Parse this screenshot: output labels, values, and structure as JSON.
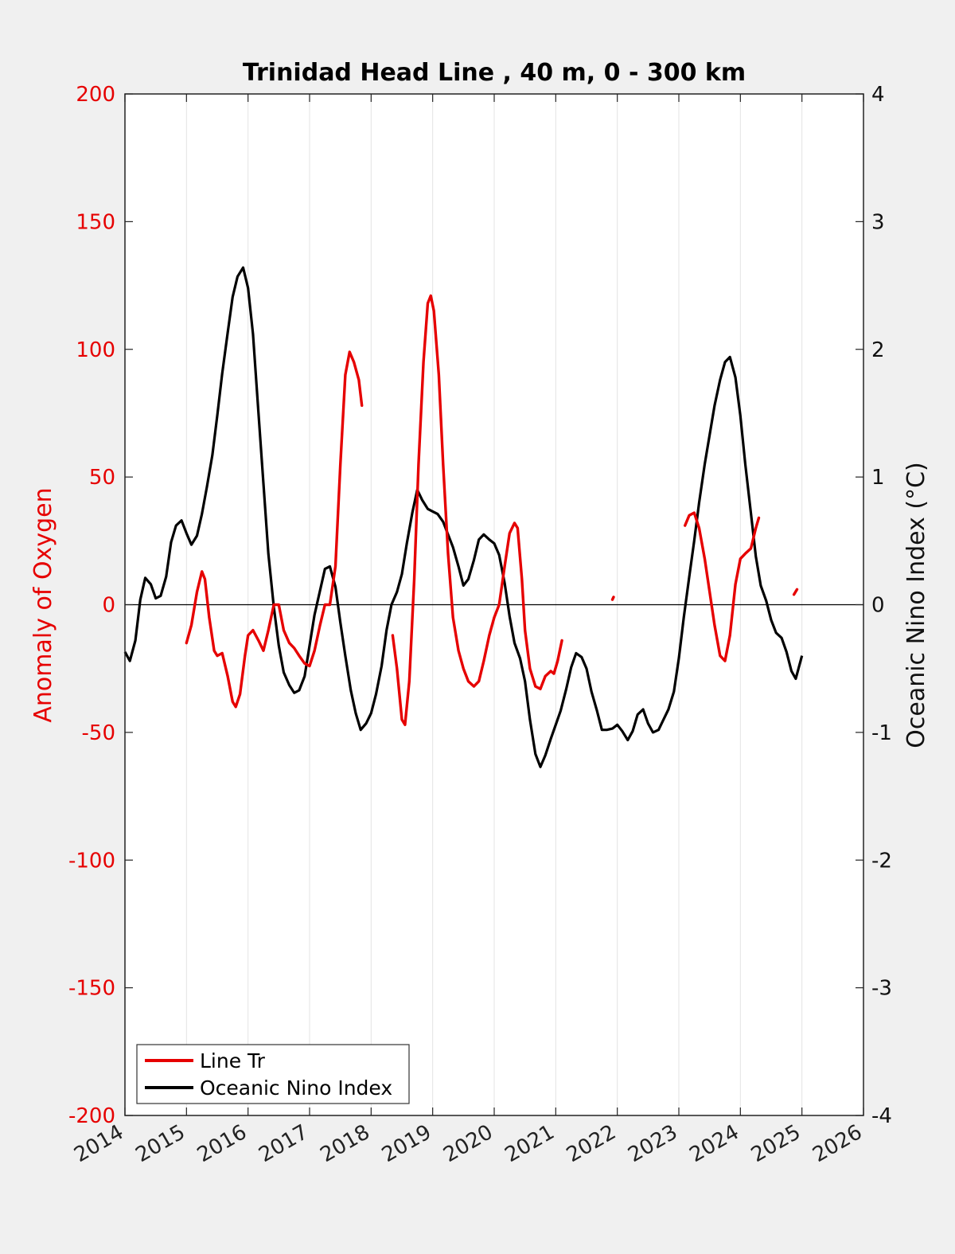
{
  "chart_data": {
    "type": "line",
    "title": "Trinidad Head Line , 40 m, 0 - 300 km",
    "xlabel": "",
    "ylabel_left": "Anomaly of Oxygen",
    "ylabel_right": "Oceanic Nino Index (°C)",
    "xlim": [
      2014,
      2026
    ],
    "ylim_left": [
      -200,
      200
    ],
    "ylim_right": [
      -4,
      4
    ],
    "x_ticks": [
      "2014",
      "2015",
      "2016",
      "2017",
      "2018",
      "2019",
      "2020",
      "2021",
      "2022",
      "2023",
      "2024",
      "2025",
      "2026"
    ],
    "y_ticks_left": [
      "200",
      "150",
      "100",
      "50",
      "0",
      "-50",
      "-100",
      "-150",
      "-200"
    ],
    "y_ticks_right": [
      "4",
      "3",
      "2",
      "1",
      "0",
      "-1",
      "-2",
      "-3",
      "-4"
    ],
    "grid": "vertical",
    "zero_line": true,
    "legend_position": "bottom-left",
    "colors": {
      "line_tr": "#e60000",
      "oni": "#000000",
      "axis_left": "#e60000"
    },
    "series": [
      {
        "name": "Line Tr",
        "axis": "left",
        "color": "#e60000",
        "segments": [
          [
            [
              2015.0,
              -15
            ],
            [
              2015.08,
              -8
            ],
            [
              2015.17,
              5
            ],
            [
              2015.25,
              13
            ],
            [
              2015.3,
              10
            ],
            [
              2015.37,
              -5
            ],
            [
              2015.45,
              -18
            ],
            [
              2015.5,
              -20
            ],
            [
              2015.58,
              -19
            ],
            [
              2015.67,
              -28
            ],
            [
              2015.75,
              -38
            ],
            [
              2015.8,
              -40
            ],
            [
              2015.87,
              -35
            ],
            [
              2015.95,
              -20
            ],
            [
              2016.0,
              -12
            ],
            [
              2016.08,
              -10
            ],
            [
              2016.17,
              -14
            ],
            [
              2016.25,
              -18
            ],
            [
              2016.33,
              -10
            ],
            [
              2016.42,
              0
            ],
            [
              2016.5,
              0
            ],
            [
              2016.58,
              -10
            ],
            [
              2016.67,
              -15
            ],
            [
              2016.75,
              -17
            ],
            [
              2016.83,
              -20
            ],
            [
              2016.92,
              -23
            ],
            [
              2017.0,
              -24
            ],
            [
              2017.08,
              -18
            ],
            [
              2017.17,
              -8
            ],
            [
              2017.25,
              0
            ],
            [
              2017.33,
              0
            ],
            [
              2017.42,
              15
            ],
            [
              2017.5,
              55
            ],
            [
              2017.58,
              90
            ],
            [
              2017.65,
              99
            ],
            [
              2017.72,
              95
            ],
            [
              2017.8,
              88
            ],
            [
              2017.85,
              78
            ]
          ],
          [
            [
              2018.35,
              -12
            ],
            [
              2018.42,
              -25
            ],
            [
              2018.5,
              -45
            ],
            [
              2018.55,
              -47
            ],
            [
              2018.62,
              -30
            ],
            [
              2018.7,
              10
            ],
            [
              2018.77,
              55
            ],
            [
              2018.85,
              95
            ],
            [
              2018.92,
              118
            ],
            [
              2018.97,
              121
            ],
            [
              2019.02,
              115
            ],
            [
              2019.1,
              90
            ],
            [
              2019.17,
              55
            ],
            [
              2019.25,
              20
            ],
            [
              2019.33,
              -5
            ],
            [
              2019.42,
              -18
            ],
            [
              2019.5,
              -25
            ],
            [
              2019.58,
              -30
            ],
            [
              2019.67,
              -32
            ],
            [
              2019.75,
              -30
            ],
            [
              2019.83,
              -22
            ],
            [
              2019.92,
              -12
            ],
            [
              2020.0,
              -5
            ],
            [
              2020.08,
              0
            ],
            [
              2020.17,
              15
            ],
            [
              2020.25,
              28
            ],
            [
              2020.33,
              32
            ],
            [
              2020.38,
              30
            ],
            [
              2020.45,
              10
            ],
            [
              2020.5,
              -10
            ],
            [
              2020.58,
              -25
            ],
            [
              2020.67,
              -32
            ],
            [
              2020.75,
              -33
            ],
            [
              2020.83,
              -28
            ],
            [
              2020.92,
              -26
            ],
            [
              2020.97,
              -27
            ],
            [
              2021.03,
              -22
            ],
            [
              2021.1,
              -14
            ]
          ],
          [
            [
              2021.92,
              2
            ],
            [
              2021.94,
              3
            ]
          ],
          [
            [
              2023.1,
              31
            ],
            [
              2023.17,
              35
            ],
            [
              2023.25,
              36
            ],
            [
              2023.33,
              30
            ],
            [
              2023.42,
              18
            ],
            [
              2023.5,
              5
            ],
            [
              2023.58,
              -8
            ],
            [
              2023.67,
              -20
            ],
            [
              2023.75,
              -22
            ],
            [
              2023.83,
              -12
            ],
            [
              2023.92,
              8
            ],
            [
              2024.0,
              18
            ],
            [
              2024.08,
              20
            ],
            [
              2024.17,
              22
            ],
            [
              2024.25,
              30
            ],
            [
              2024.3,
              34
            ]
          ],
          [
            [
              2024.87,
              4
            ],
            [
              2024.92,
              6
            ]
          ]
        ]
      },
      {
        "name": "Oceanic Nino Index",
        "axis": "right",
        "color": "#000000",
        "values": [
          [
            2014.0,
            -0.37
          ],
          [
            2014.08,
            -0.44
          ],
          [
            2014.17,
            -0.28
          ],
          [
            2014.25,
            0.04
          ],
          [
            2014.33,
            0.21
          ],
          [
            2014.42,
            0.16
          ],
          [
            2014.5,
            0.05
          ],
          [
            2014.58,
            0.07
          ],
          [
            2014.67,
            0.22
          ],
          [
            2014.75,
            0.49
          ],
          [
            2014.83,
            0.62
          ],
          [
            2014.92,
            0.66
          ],
          [
            2015.0,
            0.56
          ],
          [
            2015.08,
            0.47
          ],
          [
            2015.17,
            0.54
          ],
          [
            2015.25,
            0.71
          ],
          [
            2015.33,
            0.92
          ],
          [
            2015.42,
            1.17
          ],
          [
            2015.5,
            1.48
          ],
          [
            2015.58,
            1.81
          ],
          [
            2015.67,
            2.13
          ],
          [
            2015.75,
            2.41
          ],
          [
            2015.83,
            2.57
          ],
          [
            2015.92,
            2.64
          ],
          [
            2016.0,
            2.48
          ],
          [
            2016.08,
            2.12
          ],
          [
            2016.17,
            1.5
          ],
          [
            2016.25,
            0.95
          ],
          [
            2016.33,
            0.4
          ],
          [
            2016.42,
            -0.02
          ],
          [
            2016.5,
            -0.32
          ],
          [
            2016.58,
            -0.53
          ],
          [
            2016.67,
            -0.63
          ],
          [
            2016.75,
            -0.69
          ],
          [
            2016.83,
            -0.67
          ],
          [
            2016.92,
            -0.56
          ],
          [
            2017.0,
            -0.32
          ],
          [
            2017.08,
            -0.08
          ],
          [
            2017.17,
            0.11
          ],
          [
            2017.25,
            0.28
          ],
          [
            2017.33,
            0.3
          ],
          [
            2017.42,
            0.14
          ],
          [
            2017.5,
            -0.14
          ],
          [
            2017.58,
            -0.4
          ],
          [
            2017.67,
            -0.67
          ],
          [
            2017.75,
            -0.85
          ],
          [
            2017.83,
            -0.98
          ],
          [
            2017.92,
            -0.93
          ],
          [
            2018.0,
            -0.85
          ],
          [
            2018.08,
            -0.7
          ],
          [
            2018.17,
            -0.48
          ],
          [
            2018.25,
            -0.2
          ],
          [
            2018.33,
            0.0
          ],
          [
            2018.42,
            0.1
          ],
          [
            2018.5,
            0.24
          ],
          [
            2018.58,
            0.48
          ],
          [
            2018.67,
            0.72
          ],
          [
            2018.75,
            0.9
          ],
          [
            2018.83,
            0.82
          ],
          [
            2018.92,
            0.75
          ],
          [
            2019.0,
            0.73
          ],
          [
            2019.08,
            0.71
          ],
          [
            2019.17,
            0.65
          ],
          [
            2019.25,
            0.55
          ],
          [
            2019.33,
            0.45
          ],
          [
            2019.42,
            0.3
          ],
          [
            2019.5,
            0.15
          ],
          [
            2019.58,
            0.2
          ],
          [
            2019.67,
            0.35
          ],
          [
            2019.75,
            0.51
          ],
          [
            2019.83,
            0.55
          ],
          [
            2019.92,
            0.51
          ],
          [
            2020.0,
            0.48
          ],
          [
            2020.08,
            0.39
          ],
          [
            2020.17,
            0.17
          ],
          [
            2020.25,
            -0.09
          ],
          [
            2020.33,
            -0.3
          ],
          [
            2020.42,
            -0.42
          ],
          [
            2020.5,
            -0.6
          ],
          [
            2020.58,
            -0.9
          ],
          [
            2020.67,
            -1.17
          ],
          [
            2020.75,
            -1.27
          ],
          [
            2020.83,
            -1.18
          ],
          [
            2020.92,
            -1.05
          ],
          [
            2021.0,
            -0.94
          ],
          [
            2021.08,
            -0.83
          ],
          [
            2021.17,
            -0.66
          ],
          [
            2021.25,
            -0.49
          ],
          [
            2021.33,
            -0.38
          ],
          [
            2021.42,
            -0.41
          ],
          [
            2021.5,
            -0.5
          ],
          [
            2021.58,
            -0.68
          ],
          [
            2021.67,
            -0.83
          ],
          [
            2021.75,
            -0.98
          ],
          [
            2021.83,
            -0.98
          ],
          [
            2021.92,
            -0.97
          ],
          [
            2022.0,
            -0.94
          ],
          [
            2022.08,
            -0.99
          ],
          [
            2022.17,
            -1.06
          ],
          [
            2022.25,
            -0.99
          ],
          [
            2022.33,
            -0.86
          ],
          [
            2022.42,
            -0.82
          ],
          [
            2022.5,
            -0.93
          ],
          [
            2022.58,
            -1.0
          ],
          [
            2022.67,
            -0.98
          ],
          [
            2022.75,
            -0.9
          ],
          [
            2022.83,
            -0.82
          ],
          [
            2022.92,
            -0.68
          ],
          [
            2023.0,
            -0.42
          ],
          [
            2023.08,
            -0.1
          ],
          [
            2023.17,
            0.22
          ],
          [
            2023.25,
            0.5
          ],
          [
            2023.33,
            0.8
          ],
          [
            2023.42,
            1.1
          ],
          [
            2023.5,
            1.33
          ],
          [
            2023.58,
            1.56
          ],
          [
            2023.67,
            1.76
          ],
          [
            2023.75,
            1.9
          ],
          [
            2023.83,
            1.94
          ],
          [
            2023.92,
            1.78
          ],
          [
            2024.0,
            1.48
          ],
          [
            2024.08,
            1.1
          ],
          [
            2024.17,
            0.72
          ],
          [
            2024.25,
            0.38
          ],
          [
            2024.33,
            0.15
          ],
          [
            2024.42,
            0.03
          ],
          [
            2024.5,
            -0.12
          ],
          [
            2024.58,
            -0.22
          ],
          [
            2024.67,
            -0.26
          ],
          [
            2024.75,
            -0.37
          ],
          [
            2024.83,
            -0.52
          ],
          [
            2024.9,
            -0.58
          ],
          [
            2025.0,
            -0.4
          ]
        ]
      }
    ]
  }
}
